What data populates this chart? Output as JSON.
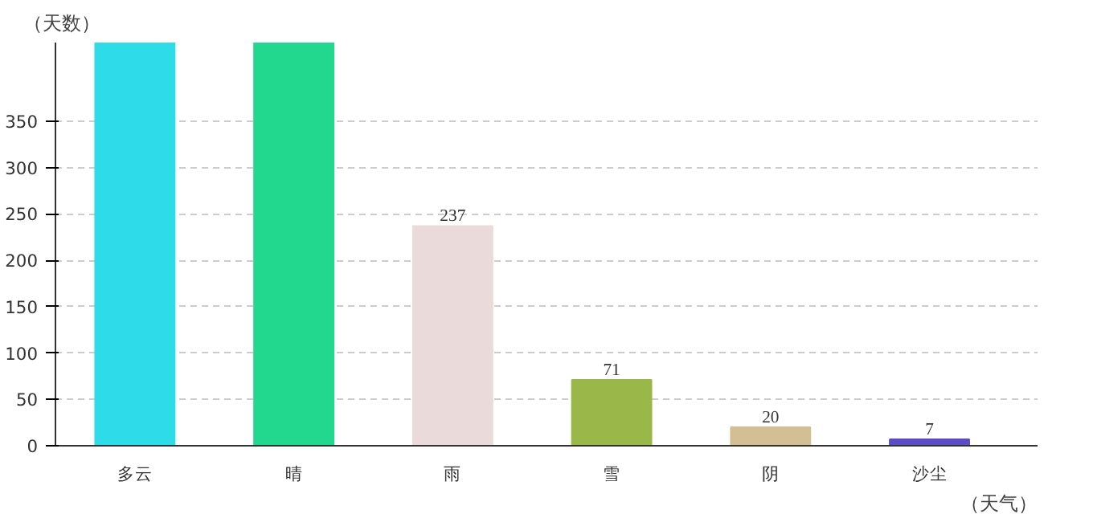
{
  "chart_data": {
    "type": "bar",
    "xlabel": "（天气）",
    "ylabel": "（天数）",
    "categories": [
      "多云",
      "晴",
      "雨",
      "雪",
      "阴",
      "沙尘"
    ],
    "values": [
      435,
      435,
      237,
      71,
      20,
      7
    ],
    "colors": [
      "#2edbe8",
      "#22d88f",
      "#ebdada",
      "#9ab84a",
      "#d4bf94",
      "#5b4cc6"
    ],
    "value_labels": [
      null,
      null,
      "237",
      "71",
      "20",
      "7"
    ],
    "ylim": [
      0,
      435
    ],
    "yticks": [
      0,
      50,
      100,
      150,
      200,
      250,
      300,
      350
    ],
    "grid": "y"
  }
}
